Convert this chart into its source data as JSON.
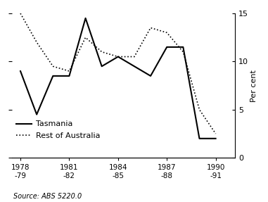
{
  "title": "",
  "ylabel_right": "Per cent",
  "source_text": "Source: ABS 5220.0",
  "x_years": [
    1978,
    1979,
    1980,
    1981,
    1982,
    1983,
    1984,
    1985,
    1986,
    1987,
    1988,
    1989,
    1990
  ],
  "x_tick_positions": [
    1978,
    1981,
    1984,
    1987,
    1990
  ],
  "x_tick_labels": [
    "1978\n-79",
    "1981\n-82",
    "1984\n-85",
    "1987\n-88",
    "1990\n-91"
  ],
  "tasmania": [
    9.0,
    4.5,
    8.5,
    8.5,
    14.5,
    9.5,
    10.5,
    9.5,
    8.5,
    11.5,
    11.5,
    2.0,
    2.0
  ],
  "rest_of_australia": [
    15.0,
    12.0,
    9.5,
    9.0,
    12.5,
    11.0,
    10.5,
    10.5,
    13.5,
    13.0,
    11.0,
    5.0,
    2.5
  ],
  "ylim": [
    0,
    15
  ],
  "yticks": [
    0,
    5,
    10,
    15
  ],
  "line_color": "#000000",
  "bg_color": "#ffffff"
}
